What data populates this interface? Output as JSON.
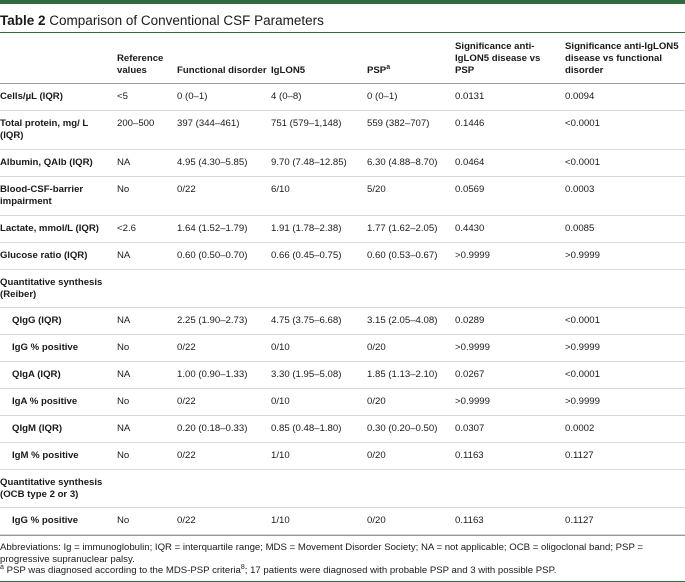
{
  "title": {
    "label": "Table 2",
    "text": "Comparison of Conventional CSF Parameters"
  },
  "headers": {
    "param": "",
    "ref": "Reference values",
    "functional": "Functional disorder",
    "iglon5": "IgLON5",
    "psp": "PSP",
    "psp_sup": "a",
    "sig_psp": "Significance anti-IgLON5 disease vs PSP",
    "sig_func": "Significance anti-IgLON5 disease vs functional disorder"
  },
  "rows": [
    {
      "label": "Cells/µL (IQR)",
      "ref": "<5",
      "functional": "0 (0–1)",
      "iglon5": "4 (0–8)",
      "psp": "0 (0–1)",
      "sig_psp": "0.0131",
      "sig_func": "0.0094"
    },
    {
      "label": "Total protein, mg/ L (IQR)",
      "ref": "200–500",
      "functional": "397 (344–461)",
      "iglon5": "751 (579–1,148)",
      "psp": "559 (382–707)",
      "sig_psp": "0.1446",
      "sig_func": "<0.0001"
    },
    {
      "label": "Albumin, QAlb (IQR)",
      "ref": "NA",
      "functional": "4.95 (4.30–5.85)",
      "iglon5": "9.70 (7.48–12.85)",
      "psp": "6.30 (4.88–8.70)",
      "sig_psp": "0.0464",
      "sig_func": "<0.0001"
    },
    {
      "label": "Blood-CSF-barrier impairment",
      "ref": "No",
      "functional": "0/22",
      "iglon5": "6/10",
      "psp": "5/20",
      "sig_psp": "0.0569",
      "sig_func": "0.0003"
    },
    {
      "label": "Lactate, mmol/L (IQR)",
      "ref": "<2.6",
      "functional": "1.64 (1.52–1.79)",
      "iglon5": "1.91 (1.78–2.38)",
      "psp": "1.77 (1.62–2.05)",
      "sig_psp": "0.4430",
      "sig_func": "0.0085"
    },
    {
      "label": "Glucose ratio (IQR)",
      "ref": "NA",
      "functional": "0.60 (0.50–0.70)",
      "iglon5": "0.66 (0.45–0.75)",
      "psp": "0.60 (0.53–0.67)",
      "sig_psp": ">0.9999",
      "sig_func": ">0.9999"
    },
    {
      "label": "Quantitative synthesis (Reiber)"
    },
    {
      "label": "QIgG (IQR)",
      "ref": "NA",
      "functional": "2.25 (1.90–2.73)",
      "iglon5": "4.75 (3.75–6.68)",
      "psp": "3.15 (2.05–4.08)",
      "sig_psp": "0.0289",
      "sig_func": "<0.0001"
    },
    {
      "label": "IgG % positive",
      "ref": "No",
      "functional": "0/22",
      "iglon5": "0/10",
      "psp": "0/20",
      "sig_psp": ">0.9999",
      "sig_func": ">0.9999"
    },
    {
      "label": "QIgA (IQR)",
      "ref": "NA",
      "functional": "1.00 (0.90–1.33)",
      "iglon5": "3.30 (1.95–5.08)",
      "psp": "1.85 (1.13–2.10)",
      "sig_psp": "0.0267",
      "sig_func": "<0.0001"
    },
    {
      "label": "IgA % positive",
      "ref": "No",
      "functional": "0/22",
      "iglon5": "0/10",
      "psp": "0/20",
      "sig_psp": ">0.9999",
      "sig_func": ">0.9999"
    },
    {
      "label": "QIgM (IQR)",
      "ref": "NA",
      "functional": "0.20 (0.18–0.33)",
      "iglon5": "0.85 (0.48–1.80)",
      "psp": "0.30 (0.20–0.50)",
      "sig_psp": "0.0307",
      "sig_func": "0.0002"
    },
    {
      "label": "IgM % positive",
      "ref": "No",
      "functional": "0/22",
      "iglon5": "1/10",
      "psp": "0/20",
      "sig_psp": "0.1163",
      "sig_func": "0.1127"
    },
    {
      "label": "Quantitative synthesis (OCB type 2 or 3)"
    },
    {
      "label": "IgG % positive",
      "ref": "No",
      "functional": "0/22",
      "iglon5": "1/10",
      "psp": "0/20",
      "sig_psp": "0.1163",
      "sig_func": "0.1127"
    }
  ],
  "footer": {
    "abbreviations": "Abbreviations: Ig = immunoglobulin; IQR = interquartile range; MDS = Movement Disorder Society; NA = not applicable; OCB = oligoclonal band; PSP = progressive supranuclear palsy.",
    "note_marker": "a",
    "note_text": " PSP was diagnosed according to the MDS-PSP criteria",
    "note_ref": "8",
    "note_tail": "; 17 patients were diagnosed with probable PSP and 3 with possible PSP."
  }
}
